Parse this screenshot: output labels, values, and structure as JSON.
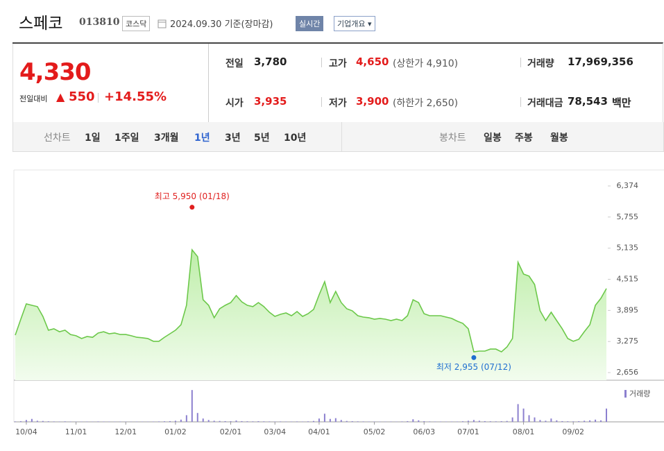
{
  "header": {
    "name": "스페코",
    "code": "013810",
    "market": "코스닥",
    "date": "2024.09.30 기준(장마감)",
    "realtime": "실시간",
    "company_info": "기업개요"
  },
  "quote": {
    "price": "4,330",
    "change_label": "전일대비",
    "change": "550",
    "change_pct": "+14.55%",
    "stats": [
      {
        "label": "전일",
        "value": "3,780"
      },
      {
        "label": "고가",
        "value": "4,650",
        "extra": "(상한가 4,910)"
      },
      {
        "label": "거래량",
        "value": "17,969,356"
      },
      {
        "label": "시가",
        "value": "3,935"
      },
      {
        "label": "저가",
        "value": "3,900",
        "extra": "(하한가 2,650)"
      },
      {
        "label": "거래대금",
        "value": "78,543",
        "unit": "백만"
      }
    ]
  },
  "tabs": {
    "line_label": "선차트",
    "line_options": [
      "1일",
      "1주일",
      "3개월",
      "1년",
      "3년",
      "5년",
      "10년"
    ],
    "selected": "1년",
    "candle_label": "봉차트",
    "candle_options": [
      "일봉",
      "주봉",
      "월봉"
    ]
  },
  "chart_data": {
    "type": "area",
    "categories": [
      null,
      null,
      "10/04",
      null,
      null,
      null,
      null,
      null,
      null,
      null,
      null,
      "11/01",
      null,
      null,
      null,
      null,
      null,
      null,
      null,
      null,
      "12/01",
      null,
      null,
      null,
      null,
      null,
      null,
      null,
      null,
      "01/02",
      null,
      null,
      null,
      null,
      null,
      null,
      null,
      null,
      null,
      "02/01",
      null,
      null,
      null,
      null,
      null,
      null,
      null,
      "03/04",
      null,
      null,
      null,
      null,
      null,
      null,
      null,
      "04/01",
      null,
      null,
      null,
      null,
      null,
      null,
      null,
      null,
      null,
      "05/02",
      null,
      null,
      null,
      null,
      null,
      null,
      null,
      null,
      "06/03",
      null,
      null,
      null,
      null,
      null,
      null,
      null,
      "07/01",
      null,
      null,
      null,
      null,
      null,
      null,
      null,
      null,
      null,
      "08/01",
      null,
      null,
      null,
      null,
      null,
      null,
      null,
      null,
      "09/02",
      null,
      null,
      null,
      null,
      null,
      null
    ],
    "series": [
      {
        "color": "#6cc84a",
        "values": [
          3403,
          3721,
          4025,
          3997,
          3970,
          3776,
          3500,
          3530,
          3470,
          3500,
          3415,
          3390,
          3335,
          3375,
          3360,
          3444,
          3470,
          3430,
          3444,
          3415,
          3415,
          3390,
          3360,
          3350,
          3335,
          3280,
          3280,
          3360,
          3430,
          3500,
          3610,
          3997,
          5103,
          4965,
          4108,
          3997,
          3750,
          3928,
          3997,
          4050,
          4190,
          4066,
          3997,
          3970,
          4050,
          3970,
          3859,
          3776,
          3817,
          3845,
          3790,
          3873,
          3776,
          3830,
          3915,
          4204,
          4467,
          4050,
          4273,
          4050,
          3928,
          3887,
          3790,
          3762,
          3750,
          3721,
          3735,
          3721,
          3693,
          3721,
          3693,
          3790,
          4108,
          4050,
          3830,
          3790,
          3790,
          3790,
          3762,
          3735,
          3680,
          3638,
          3530,
          3070,
          3085,
          3085,
          3125,
          3125,
          3070,
          3168,
          3335,
          4854,
          4619,
          4578,
          4412,
          3887,
          3693,
          3859,
          3693,
          3530,
          3335,
          3280,
          3320,
          3470,
          3610,
          3997,
          4135,
          4330
        ]
      },
      {
        "name": "거래량",
        "color": "#8c80cf",
        "axis": "y2",
        "values": [
          600000,
          900000,
          2500000,
          4000000,
          1500000,
          1200000,
          800000,
          600000,
          500000,
          700000,
          500000,
          400000,
          450000,
          500000,
          400000,
          600000,
          500000,
          450000,
          400000,
          500000,
          400000,
          350000,
          450000,
          400000,
          350000,
          500000,
          600000,
          800000,
          1000000,
          1500000,
          3000000,
          9000000,
          43000000,
          12000000,
          4500000,
          2500000,
          1500000,
          1200000,
          1000000,
          900000,
          1800000,
          1000000,
          800000,
          700000,
          900000,
          700000,
          600000,
          500000,
          600000,
          500000,
          500000,
          600000,
          500000,
          700000,
          1200000,
          4500000,
          11000000,
          4000000,
          5000000,
          2500000,
          1200000,
          900000,
          700000,
          600000,
          500000,
          500000,
          450000,
          400000,
          500000,
          400000,
          600000,
          1000000,
          3500000,
          2000000,
          900000,
          600000,
          500000,
          500000,
          450000,
          500000,
          500000,
          800000,
          1500000,
          2500000,
          1500000,
          1000000,
          800000,
          700000,
          900000,
          1200000,
          6000000,
          24000000,
          18000000,
          9000000,
          6000000,
          2500000,
          1500000,
          4500000,
          2000000,
          1000000,
          800000,
          700000,
          900000,
          1500000,
          2000000,
          3000000,
          2000000,
          17969356
        ]
      }
    ],
    "ylim": [
      2504,
      6692
    ],
    "yticks": [
      {
        "value": 2656,
        "label": "2,656"
      },
      {
        "value": 3275,
        "label": "3,275"
      },
      {
        "value": 3895,
        "label": "3,895"
      },
      {
        "value": 4515,
        "label": "4,515"
      },
      {
        "value": 5135,
        "label": "5,135"
      },
      {
        "value": 5755,
        "label": "5,755"
      },
      {
        "value": 6374,
        "label": "6,374"
      }
    ],
    "y2lim": [
      0,
      45000000
    ],
    "grid": false,
    "annotations": [
      {
        "text": "최고 5,950 (01/18)",
        "value": 5950,
        "color": "#e0201f"
      },
      {
        "text": "최저 2,955 (07/12)",
        "value": 2955,
        "color": "#1f6fd0"
      }
    ]
  }
}
